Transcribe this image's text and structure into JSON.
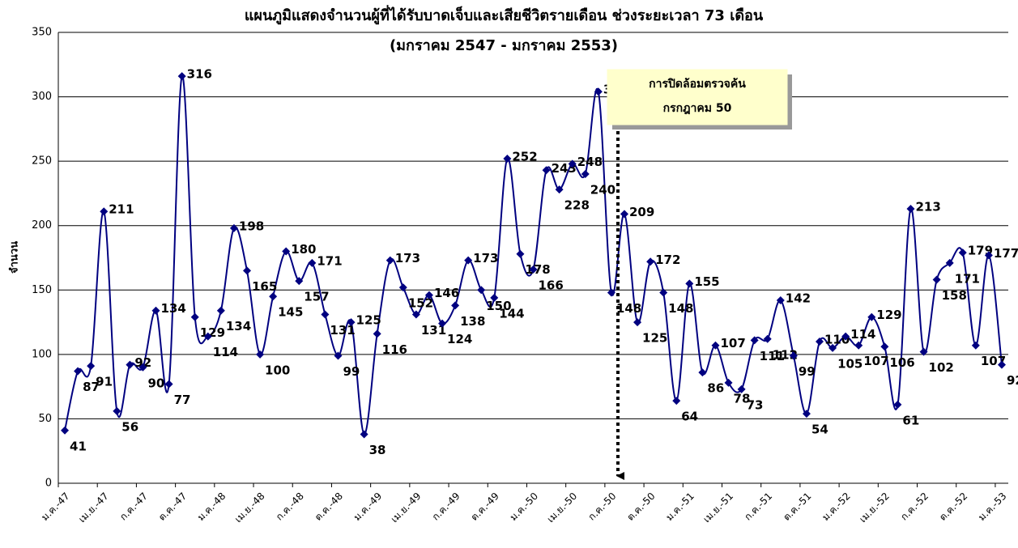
{
  "chart_data": {
    "type": "line",
    "title": "แผนภูมิแสดงจำนวนผู้ที่ได้รับบาดเจ็บและเสียชีวิตรายเดือน ช่วงระยะเวลา 73 เดือน",
    "subtitle": "(มกราคม 2547 - มกราคม 2553)",
    "y_label": "จำนวน",
    "annotation": {
      "lines": [
        "การปิดล้อมตรวจค้น",
        "กรกฎาคม 50"
      ]
    },
    "categories": [
      "ม.ค.-47",
      null,
      null,
      "เม.ย.-47",
      null,
      null,
      "ก.ค.-47",
      null,
      null,
      "ต.ค.-47",
      null,
      null,
      "ม.ค.-48",
      null,
      null,
      "เม.ย.-48",
      null,
      null,
      "ก.ค.-48",
      null,
      null,
      "ต.ค.-48",
      null,
      null,
      "ม.ค.-49",
      null,
      null,
      "เม.ย.-49",
      null,
      null,
      "ก.ค.-49",
      null,
      null,
      "ต.ค.-49",
      null,
      null,
      "ม.ค.-50",
      null,
      null,
      "เม.ย.-50",
      null,
      null,
      "ก.ค.-50",
      null,
      null,
      "ต.ค.-50",
      null,
      null,
      "ม.ค.-51",
      null,
      null,
      "เม.ย.-51",
      null,
      null,
      "ก.ค.-51",
      null,
      null,
      "ต.ค.-51",
      null,
      null,
      "ม.ค.-52",
      null,
      null,
      "เม.ย.-52",
      null,
      null,
      "ก.ค.-52",
      null,
      null,
      "ต.ค.-52",
      null,
      null,
      "ม.ค.-53"
    ],
    "series": [
      {
        "name": "จำนวน",
        "color": "#000080",
        "values": [
          41,
          87,
          91,
          211,
          56,
          92,
          90,
          134,
          77,
          316,
          129,
          114,
          134,
          198,
          165,
          100,
          145,
          180,
          157,
          171,
          131,
          99,
          125,
          38,
          116,
          173,
          152,
          131,
          146,
          124,
          138,
          173,
          150,
          144,
          252,
          178,
          166,
          243,
          228,
          248,
          240,
          304,
          148,
          209,
          125,
          172,
          148,
          64,
          155,
          86,
          107,
          78,
          73,
          111,
          112,
          142,
          99,
          54,
          110,
          105,
          114,
          107,
          129,
          106,
          61,
          213,
          102,
          158,
          171,
          179,
          107,
          177,
          92
        ]
      }
    ],
    "ylim": [
      0,
      350
    ],
    "yticks": [
      0,
      50,
      100,
      150,
      200,
      250,
      300,
      350
    ],
    "grid": true
  }
}
